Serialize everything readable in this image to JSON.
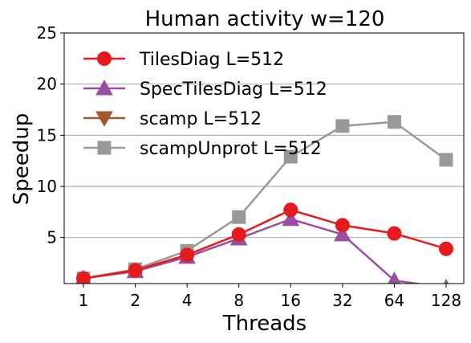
{
  "chart_data": {
    "type": "line",
    "title": "Human activity w=120",
    "xlabel": "Threads",
    "ylabel": "Speedup",
    "categories": [
      "1",
      "2",
      "4",
      "8",
      "16",
      "32",
      "64",
      "128"
    ],
    "yticks": [
      "5",
      "10",
      "15",
      "20",
      "25"
    ],
    "ylim": [
      0.5,
      25
    ],
    "grid": "horizontal",
    "legend_position": "upper-left",
    "series": [
      {
        "name": "TilesDiag L=512",
        "color": "#e41a1c",
        "marker": "circle",
        "values": [
          1.0,
          1.8,
          3.3,
          5.3,
          7.7,
          6.2,
          5.4,
          3.9
        ]
      },
      {
        "name": "SpecTilesDiag L=512",
        "color": "#984ea3",
        "marker": "triangle-up",
        "values": [
          1.0,
          1.7,
          3.1,
          4.9,
          6.8,
          5.3,
          0.8,
          0.1
        ]
      },
      {
        "name": "scamp L=512",
        "color": "#a65628",
        "marker": "triangle-down",
        "values": [
          null,
          null,
          null,
          null,
          null,
          null,
          null,
          null
        ]
      },
      {
        "name": "scampUnprot L=512",
        "color": "#999999",
        "marker": "square",
        "values": [
          1.0,
          1.9,
          3.7,
          7.0,
          12.9,
          15.9,
          16.3,
          12.6
        ]
      }
    ]
  }
}
